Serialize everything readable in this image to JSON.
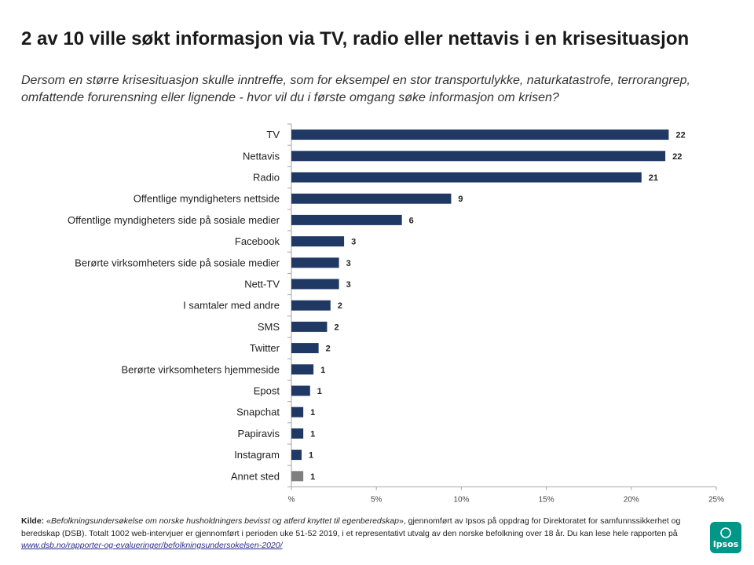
{
  "title": "2 av 10 ville søkt informasjon via TV, radio eller nettavis i en krisesituasjon",
  "question": "Dersom en større krisesituasjon skulle inntreffe, som for eksempel en stor transportulykke, naturkatastrofe, terrorangrep, omfattende forurensning eller lignende - hvor vil du i første omgang søke informasjon om krisen?",
  "chart_data": {
    "type": "bar",
    "orientation": "horizontal",
    "categories": [
      "TV",
      "Nettavis",
      "Radio",
      "Offentlige myndigheters nettside",
      "Offentlige myndigheters side på sosiale medier",
      "Facebook",
      "Berørte virksomheters side på sosiale medier",
      "Nett-TV",
      "I samtaler med andre",
      "SMS",
      "Twitter",
      "Berørte virksomheters hjemmeside",
      "Epost",
      "Snapchat",
      "Papiravis",
      "Instagram",
      "Annet sted"
    ],
    "values": [
      22.2,
      22.0,
      20.6,
      9.4,
      6.5,
      3.1,
      2.8,
      2.8,
      2.3,
      2.1,
      1.6,
      1.3,
      1.1,
      0.7,
      0.7,
      0.6,
      0.7
    ],
    "data_labels": [
      "22",
      "22",
      "21",
      "9",
      "6",
      "3",
      "3",
      "3",
      "2",
      "2",
      "2",
      "1",
      "1",
      "1",
      "1",
      "1",
      "1"
    ],
    "bar_colors": [
      "#1f3864",
      "#1f3864",
      "#1f3864",
      "#1f3864",
      "#1f3864",
      "#1f3864",
      "#1f3864",
      "#1f3864",
      "#1f3864",
      "#1f3864",
      "#1f3864",
      "#1f3864",
      "#1f3864",
      "#1f3864",
      "#1f3864",
      "#1f3864",
      "#7f7f7f"
    ],
    "xlim": [
      0,
      25
    ],
    "xticks": [
      0,
      5,
      10,
      15,
      20,
      25
    ],
    "xtick_labels": [
      "%",
      "5%",
      "10%",
      "15%",
      "20%",
      "25%"
    ],
    "grid": false,
    "legend": "none"
  },
  "source": {
    "label": "Kilde:",
    "open_quote": "«",
    "report_title": "Befolkningsundersøkelse om norske husholdningers bevisst og atferd knyttet til egenberedskap",
    "text": "», gjennomført av Ipsos på oppdrag for Direktoratet for samfunnssikkerhet og beredskap (DSB). Totalt 1002 web-intervjuer er gjennomført i perioden uke 51-52 2019, i et representativt utvalg av den norske befolkning over 18 år.  Du kan lese hele rapporten på ",
    "link": "www.dsb.no/rapporter-og-evalueringer/befolkningsundersokelsen-2020/"
  },
  "logo": {
    "text": "Ipsos",
    "color": "#009688"
  }
}
